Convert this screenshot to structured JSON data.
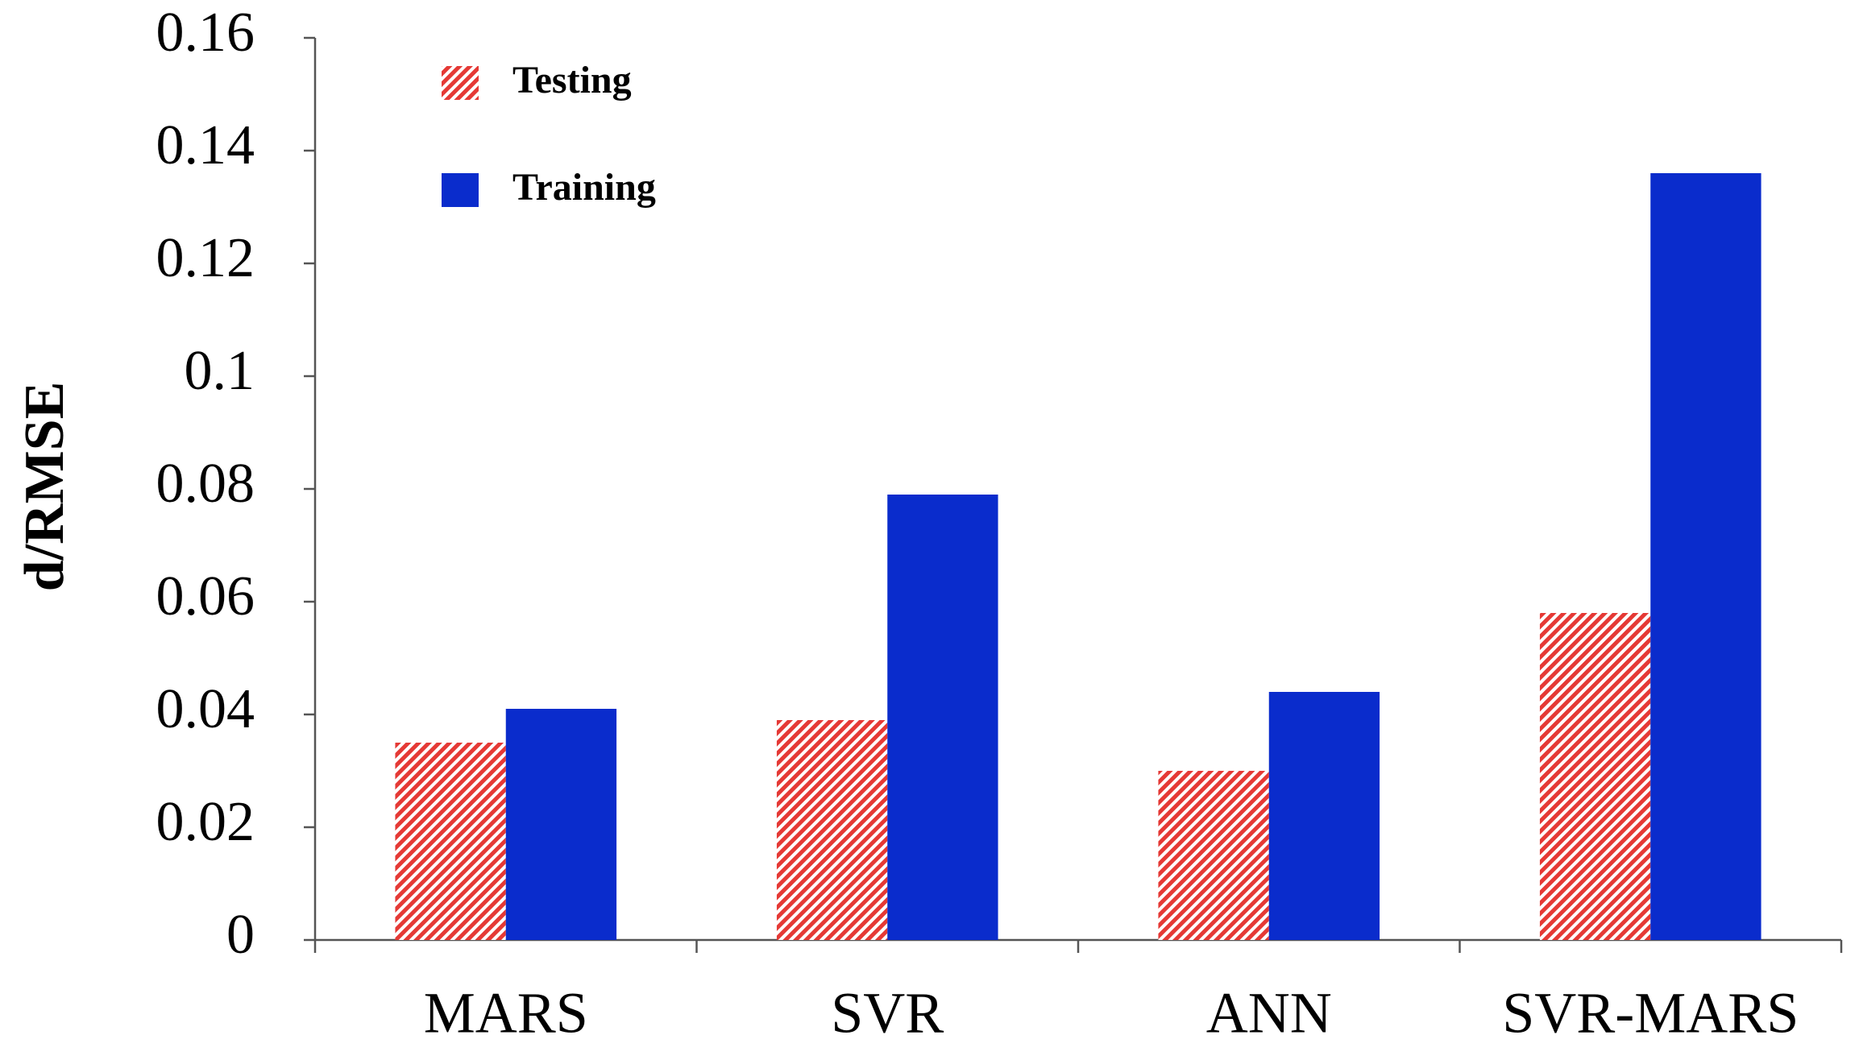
{
  "chart_data": {
    "type": "bar",
    "y_label": "d/RMSE",
    "categories": [
      "MARS",
      "SVR",
      "ANN",
      "SVR-MARS"
    ],
    "series": [
      {
        "name": "Testing",
        "color": "#e53935",
        "hatch": true,
        "values": [
          0.035,
          0.039,
          0.03,
          0.058
        ]
      },
      {
        "name": "Training",
        "color": "#0a2ccc",
        "hatch": false,
        "values": [
          0.041,
          0.079,
          0.044,
          0.136
        ]
      }
    ],
    "ylim": [
      0,
      0.16
    ],
    "yticks": [
      0,
      0.02,
      0.04,
      0.06,
      0.08,
      0.1,
      0.12,
      0.14,
      0.16
    ],
    "grid": false,
    "legend": "upper left"
  }
}
